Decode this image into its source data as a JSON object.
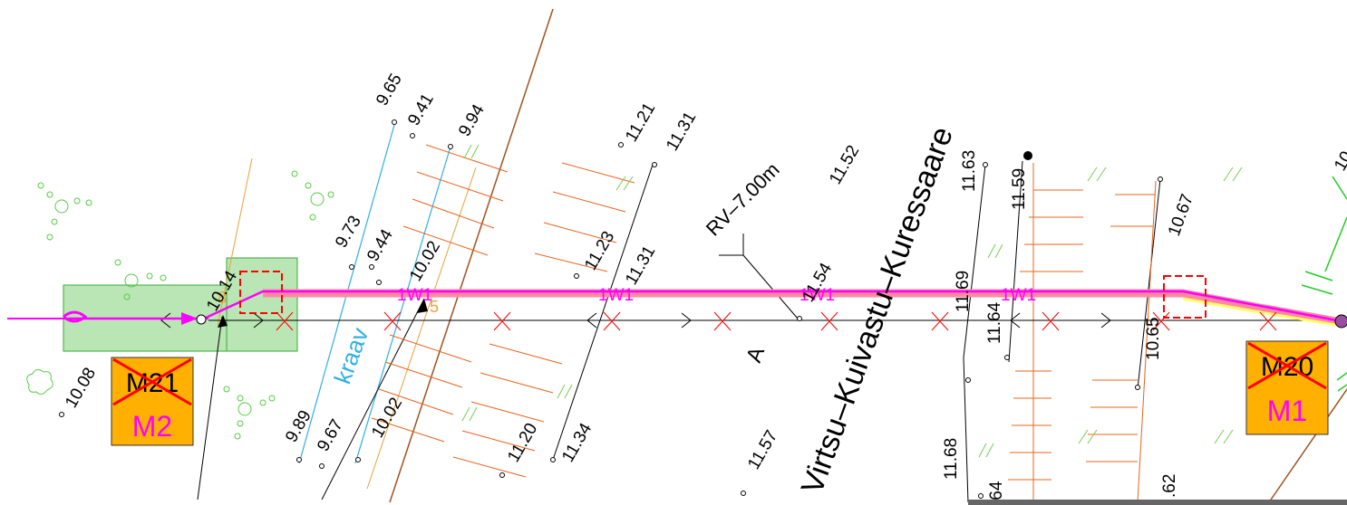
{
  "colors": {
    "cable": "#ff00ff",
    "cable_halo": "#ff8aa0",
    "zone_fill": "#b9e6b4",
    "zone_stroke": "#3aa83a",
    "ditch": "#2fb0e3",
    "hatch": "#e8641e",
    "sign_fill": "#ffb000",
    "cross": "#ff0000",
    "vegetation": "#55cc44"
  },
  "cable": {
    "label_1": "1W1",
    "label_2": "1W1",
    "label_3": "1W1",
    "label_4": "1W1"
  },
  "road": {
    "name": "Virtsu–Kuivastu–Kuressaare",
    "width_note": "RV–7.00m",
    "axis_letter": "A",
    "ditch_label": "kraav"
  },
  "markers": {
    "left": {
      "old": "M21",
      "new": "M2"
    },
    "right": {
      "old": "M20",
      "new": "M1"
    }
  },
  "elevations": [
    "10.08",
    "10.14",
    "9.65",
    "9.41",
    "9.94",
    "9.73",
    "9.44",
    "10.02",
    "9.89",
    "9.67",
    "10.02",
    "11.21",
    "11.31",
    "11.23",
    "11.31",
    "11.20",
    "11.34",
    "11.52",
    "11.54",
    "11.57",
    "11.63",
    "11.59",
    "11.69",
    "11.64",
    "11.68",
    ".64",
    "10.67",
    "10.65",
    ".62",
    "10"
  ]
}
